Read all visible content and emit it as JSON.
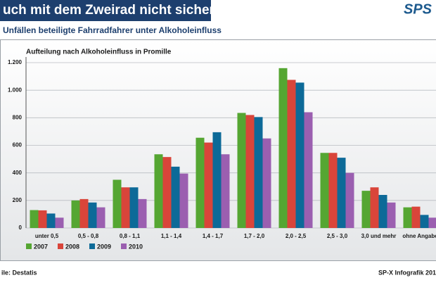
{
  "header": {
    "title": "uch mit dem Zweirad nicht sicher",
    "subtitle": "Unfällen beteiligte Fahrradfahrer unter Alkoholeinfluss",
    "logo": "SPS"
  },
  "footer": {
    "source": "ile: Destatis",
    "credit": "SP-X Infografik 201"
  },
  "chart_data": {
    "type": "bar",
    "title": "Aufteilung nach Alkoholeinfluss in Promille",
    "categories": [
      "unter 0,5",
      "0,5 - 0,8",
      "0,8 - 1,1",
      "1,1 - 1,4",
      "1,4 - 1,7",
      "1,7 - 2,0",
      "2,0 - 2,5",
      "2,5 - 3,0",
      "3,0 und mehr",
      "ohne Angabe"
    ],
    "series": [
      {
        "name": "2007",
        "color": "#55a632",
        "values": [
          130,
          200,
          350,
          535,
          655,
          835,
          1160,
          545,
          270,
          150
        ]
      },
      {
        "name": "2008",
        "color": "#d9453a",
        "values": [
          128,
          210,
          295,
          515,
          620,
          820,
          1075,
          545,
          295,
          155
        ]
      },
      {
        "name": "2009",
        "color": "#0d6a98",
        "values": [
          105,
          185,
          295,
          445,
          695,
          805,
          1055,
          510,
          240,
          95
        ]
      },
      {
        "name": "2010",
        "color": "#9b5fb0",
        "values": [
          75,
          150,
          210,
          395,
          535,
          650,
          840,
          400,
          185,
          75
        ]
      }
    ],
    "ylim": [
      0,
      1200
    ],
    "yticks": [
      0,
      200,
      400,
      600,
      800,
      {
        "value": 1000,
        "label": "1.000"
      },
      {
        "value": 1200,
        "label": "1.200"
      }
    ],
    "grid": true
  }
}
